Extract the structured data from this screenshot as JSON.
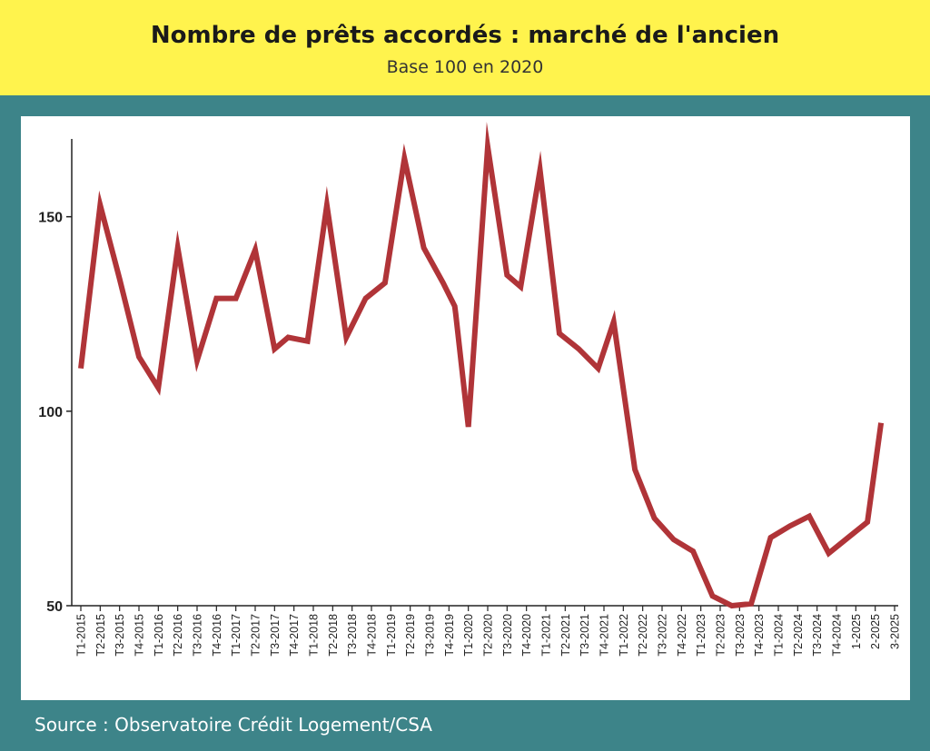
{
  "header": {
    "title": "Nombre de prêts accordés : marché de l'ancien",
    "subtitle": "Base 100 en 2020"
  },
  "footer": {
    "source": "Source : Observatoire Crédit Logement/CSA"
  },
  "colors": {
    "background": "#3d8489",
    "header": "#fff34d",
    "line": "#b03438"
  },
  "chart_data": {
    "type": "line",
    "title": "Nombre de prêts accordés : marché de l'ancien",
    "subtitle": "Base 100 en 2020",
    "ylim": [
      50,
      170
    ],
    "yticks": [
      50,
      100,
      150
    ],
    "grid": false,
    "x": [
      "T1-2015",
      "T2-2015",
      "T3-2015",
      "T4-2015",
      "T1-2016",
      "T2-2016",
      "T3-2016",
      "T4-2016",
      "T1-2017",
      "T2-2017",
      "T3-2017",
      "T4-2017",
      "T1-2018",
      "T2-2018",
      "T3-2018",
      "T4-2018",
      "T1-2019",
      "T2-2019",
      "T3-2019",
      "T4-2019",
      "T1-2020",
      "T2-2020",
      "T3-2020",
      "T4-2020",
      "T1-2021",
      "T2-2021",
      "T3-2021",
      "T4-2021",
      "T1-2022",
      "T2-2022",
      "T3-2022",
      "T4-2022",
      "T1-2023",
      "T2-2023",
      "T3-2023",
      "T4-2023",
      "T1-2024",
      "T2-2024",
      "T3-2024",
      "T4-2024",
      "1-2025",
      "2-2025",
      "3-2025"
    ],
    "series": [
      {
        "points": [
          [
            0,
            111
          ],
          [
            1,
            153
          ],
          [
            2,
            134
          ],
          [
            3,
            114
          ],
          [
            4,
            106
          ],
          [
            5,
            142
          ],
          [
            6,
            113
          ],
          [
            7,
            129
          ],
          [
            8,
            129
          ],
          [
            9,
            141.5
          ],
          [
            10,
            116
          ],
          [
            10.7,
            119
          ],
          [
            11.7,
            118
          ],
          [
            12.7,
            153
          ],
          [
            13.7,
            119
          ],
          [
            14.7,
            129
          ],
          [
            15.7,
            133
          ],
          [
            16.7,
            165
          ],
          [
            17.7,
            142
          ],
          [
            18.7,
            133
          ],
          [
            19.3,
            127
          ],
          [
            19.35,
            125
          ],
          [
            20,
            96
          ],
          [
            21,
            168
          ],
          [
            22,
            135
          ],
          [
            22.7,
            132
          ],
          [
            23.7,
            162
          ],
          [
            24.7,
            120
          ],
          [
            25.7,
            116
          ],
          [
            26.7,
            111
          ],
          [
            27.5,
            123
          ],
          [
            28.6,
            85
          ],
          [
            29.6,
            72.5
          ],
          [
            30.6,
            67
          ],
          [
            31.6,
            64
          ],
          [
            32.6,
            52.5
          ],
          [
            33.6,
            50
          ],
          [
            34.6,
            50.5
          ],
          [
            35.6,
            67.5
          ],
          [
            36.6,
            70.5
          ],
          [
            37.6,
            73
          ],
          [
            38.6,
            63.5
          ],
          [
            39.6,
            67.5
          ],
          [
            40.6,
            71.5
          ],
          [
            41.3,
            97
          ]
        ]
      }
    ]
  }
}
